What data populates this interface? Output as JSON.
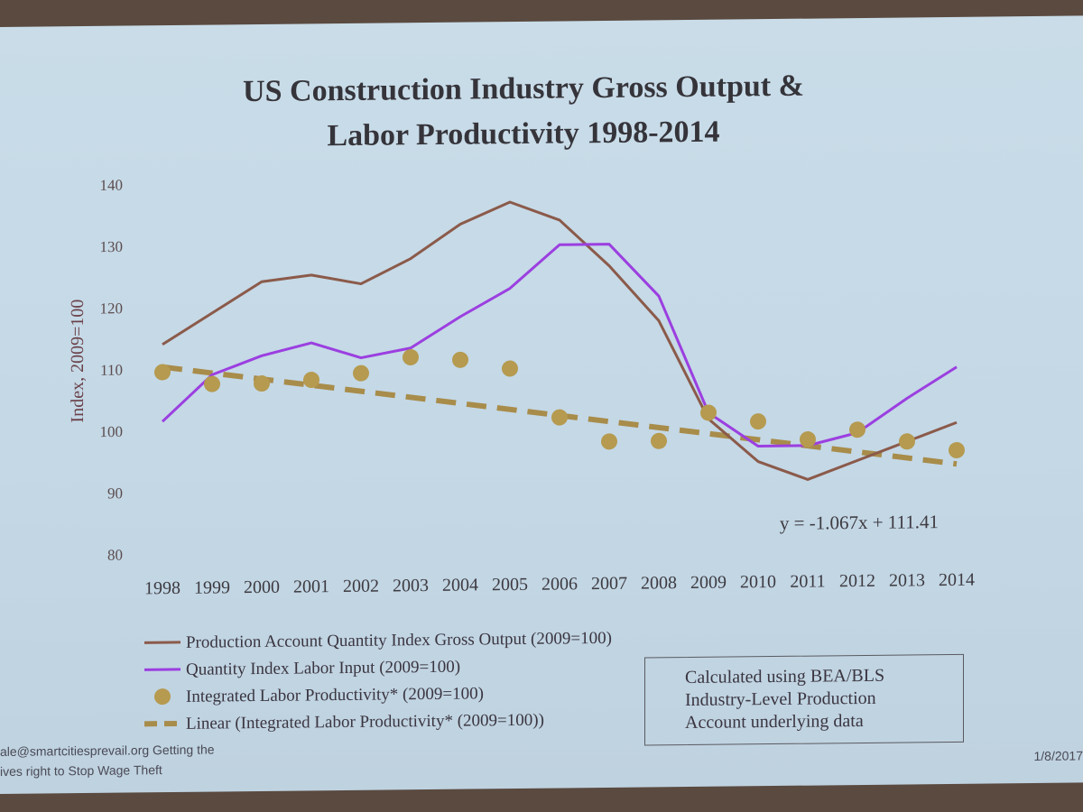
{
  "chart_data": {
    "type": "line",
    "title": "US Construction Industry Gross Output & Labor Productivity 1998-2014",
    "title_lines": [
      "US Construction Industry Gross Output &",
      "Labor Productivity 1998-2014"
    ],
    "ylabel": "Index, 2009=100",
    "xlabel": "",
    "ylim": [
      80,
      140
    ],
    "yticks": [
      140,
      130,
      120,
      110,
      100,
      90,
      80
    ],
    "categories": [
      "1998",
      "1999",
      "2000",
      "2001",
      "2002",
      "2003",
      "2004",
      "2005",
      "2006",
      "2007",
      "2008",
      "2009",
      "2010",
      "2011",
      "2012",
      "2013",
      "2014"
    ],
    "series": [
      {
        "name": "Production Account Quantity Index Gross Output (2009=100)",
        "kind": "line",
        "color": "#8b5a4a",
        "values": [
          114,
          119,
          124,
          125,
          123.5,
          127.5,
          133,
          136.5,
          133.5,
          126,
          117,
          101,
          94,
          91,
          94,
          97,
          100
        ]
      },
      {
        "name": "Quantity Index Labor Input (2009=100)",
        "kind": "line",
        "color": "#9b3fe0",
        "values": [
          101.5,
          109,
          112,
          114,
          111.5,
          113,
          118,
          122.5,
          129.5,
          129.5,
          121,
          102,
          96.5,
          96.5,
          98.5,
          104,
          109
        ]
      },
      {
        "name": "Integrated Labor Productivity* (2009=100)",
        "kind": "scatter",
        "color": "#b59a4f",
        "values": [
          109.5,
          107.5,
          107.5,
          108,
          109,
          111.5,
          111,
          109.5,
          101.5,
          97.5,
          97.5,
          102,
          100.5,
          97.5,
          99,
          97,
          95.5
        ]
      },
      {
        "name": "Linear (Integrated Labor Productivity* (2009=100))",
        "kind": "trend",
        "color": "#a88c4a",
        "equation": "y = -1.067x + 111.41",
        "slope": -1.067,
        "intercept": 111.41
      }
    ],
    "grid": false,
    "legend_placement": "bottom-left"
  },
  "note": [
    "Calculated using BEA/BLS",
    "Industry-Level Production",
    "Account underlying data"
  ],
  "footer": {
    "left_line1": "ale@smartcitiesprevail.org  Getting the",
    "left_line2": "ives right to Stop Wage Theft",
    "right": "1/8/2017"
  }
}
